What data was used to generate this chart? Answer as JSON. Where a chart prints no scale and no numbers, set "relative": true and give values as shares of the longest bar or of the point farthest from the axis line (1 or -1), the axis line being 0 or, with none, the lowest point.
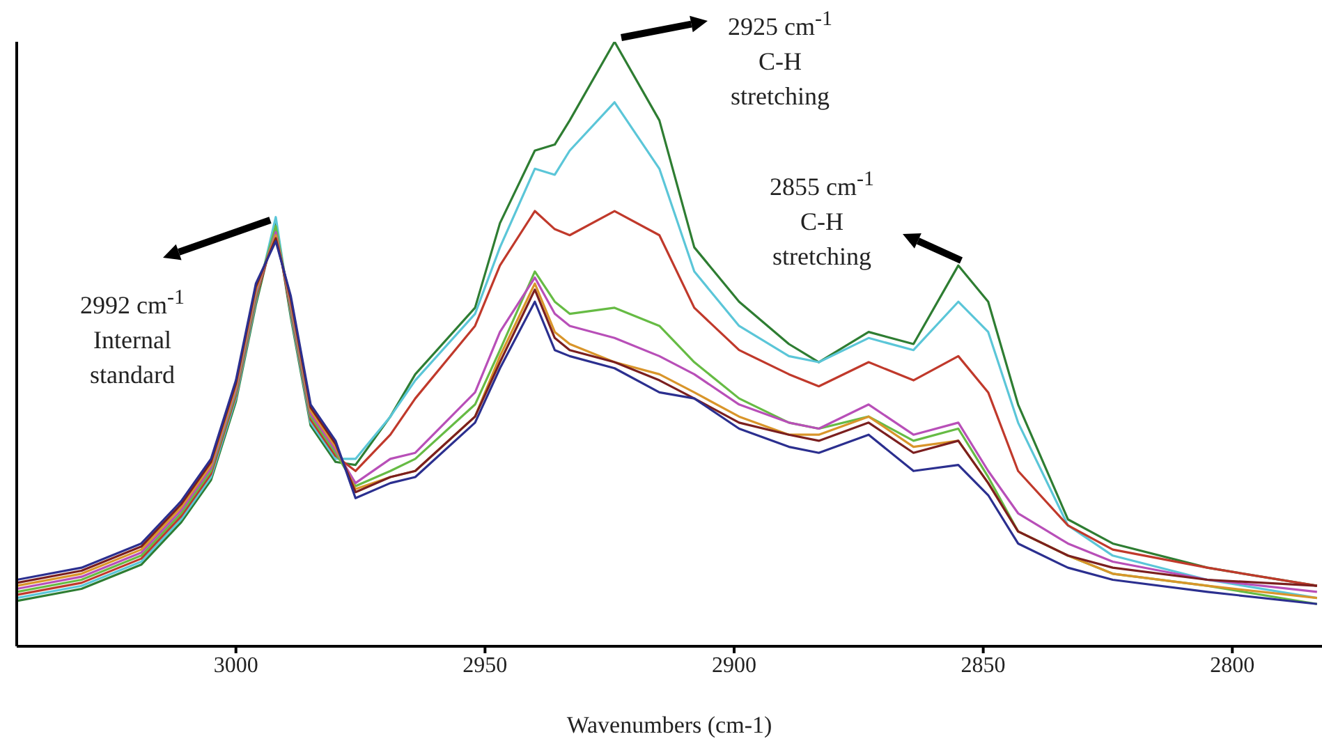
{
  "chart_data": {
    "type": "line",
    "relative": true,
    "xlabel": "Wavenumbers (cm-1)",
    "x": [
      3044,
      3031,
      3019,
      3011,
      3005,
      3000,
      2996,
      2992,
      2989,
      2985,
      2980,
      2976,
      2969,
      2964,
      2952,
      2947,
      2940,
      2936,
      2933,
      2924,
      2915,
      2908,
      2899,
      2889,
      2883,
      2873,
      2864,
      2855,
      2849,
      2843,
      2833,
      2824,
      2805,
      2783
    ],
    "xlim": [
      3044,
      2782
    ],
    "xticks": [
      3000,
      2950,
      2900,
      2850,
      2800
    ],
    "series": [
      {
        "color": "#2e7d32",
        "values": [
          0.075,
          0.095,
          0.135,
          0.205,
          0.275,
          0.405,
          0.565,
          0.7,
          0.545,
          0.365,
          0.305,
          0.3,
          0.38,
          0.45,
          0.56,
          0.7,
          0.82,
          0.83,
          0.87,
          1.0,
          0.87,
          0.66,
          0.57,
          0.5,
          0.47,
          0.52,
          0.5,
          0.63,
          0.57,
          0.4,
          0.21,
          0.17,
          0.13,
          0.1
        ]
      },
      {
        "color": "#5bc6d8",
        "values": [
          0.08,
          0.1,
          0.14,
          0.21,
          0.28,
          0.41,
          0.57,
          0.71,
          0.55,
          0.37,
          0.31,
          0.31,
          0.38,
          0.44,
          0.55,
          0.66,
          0.79,
          0.78,
          0.82,
          0.9,
          0.79,
          0.62,
          0.53,
          0.48,
          0.47,
          0.51,
          0.49,
          0.57,
          0.52,
          0.37,
          0.2,
          0.15,
          0.11,
          0.08
        ]
      },
      {
        "color": "#c0392b",
        "values": [
          0.085,
          0.105,
          0.145,
          0.215,
          0.285,
          0.415,
          0.575,
          0.69,
          0.555,
          0.375,
          0.315,
          0.29,
          0.35,
          0.41,
          0.53,
          0.63,
          0.72,
          0.69,
          0.68,
          0.72,
          0.68,
          0.56,
          0.49,
          0.45,
          0.43,
          0.47,
          0.44,
          0.48,
          0.42,
          0.29,
          0.2,
          0.16,
          0.13,
          0.1
        ]
      },
      {
        "color": "#66bb44",
        "values": [
          0.09,
          0.11,
          0.15,
          0.22,
          0.29,
          0.42,
          0.58,
          0.695,
          0.56,
          0.38,
          0.32,
          0.265,
          0.29,
          0.31,
          0.4,
          0.49,
          0.62,
          0.57,
          0.55,
          0.56,
          0.53,
          0.47,
          0.41,
          0.37,
          0.36,
          0.38,
          0.34,
          0.36,
          0.28,
          0.19,
          0.15,
          0.12,
          0.1,
          0.07
        ]
      },
      {
        "color": "#b84fb8",
        "values": [
          0.095,
          0.115,
          0.155,
          0.225,
          0.295,
          0.425,
          0.585,
          0.685,
          0.565,
          0.385,
          0.325,
          0.27,
          0.31,
          0.32,
          0.42,
          0.52,
          0.61,
          0.55,
          0.53,
          0.51,
          0.48,
          0.45,
          0.4,
          0.37,
          0.36,
          0.4,
          0.35,
          0.37,
          0.29,
          0.22,
          0.17,
          0.14,
          0.11,
          0.09
        ]
      },
      {
        "color": "#d9952a",
        "values": [
          0.1,
          0.12,
          0.16,
          0.23,
          0.3,
          0.43,
          0.59,
          0.68,
          0.57,
          0.39,
          0.33,
          0.26,
          0.28,
          0.29,
          0.38,
          0.48,
          0.6,
          0.52,
          0.5,
          0.47,
          0.45,
          0.42,
          0.38,
          0.35,
          0.35,
          0.38,
          0.33,
          0.34,
          0.27,
          0.19,
          0.15,
          0.12,
          0.1,
          0.08
        ]
      },
      {
        "color": "#7b1f1f",
        "values": [
          0.105,
          0.125,
          0.165,
          0.235,
          0.305,
          0.435,
          0.595,
          0.675,
          0.575,
          0.395,
          0.335,
          0.255,
          0.28,
          0.29,
          0.38,
          0.47,
          0.59,
          0.51,
          0.49,
          0.47,
          0.44,
          0.41,
          0.37,
          0.35,
          0.34,
          0.37,
          0.32,
          0.34,
          0.27,
          0.19,
          0.15,
          0.13,
          0.11,
          0.1
        ]
      },
      {
        "color": "#2b2f8f",
        "values": [
          0.11,
          0.13,
          0.17,
          0.24,
          0.31,
          0.44,
          0.6,
          0.67,
          0.58,
          0.4,
          0.34,
          0.245,
          0.27,
          0.28,
          0.37,
          0.46,
          0.57,
          0.49,
          0.48,
          0.46,
          0.42,
          0.41,
          0.36,
          0.33,
          0.32,
          0.35,
          0.29,
          0.3,
          0.25,
          0.17,
          0.13,
          0.11,
          0.09,
          0.07
        ]
      }
    ],
    "annotations": [
      "2992 cm$^{-1}$\nInternal\nstandard",
      "2925 cm$^{-1}$\nC-H\nstretching",
      "2855 cm$^{-1}$\nC-H\nstretching"
    ]
  }
}
